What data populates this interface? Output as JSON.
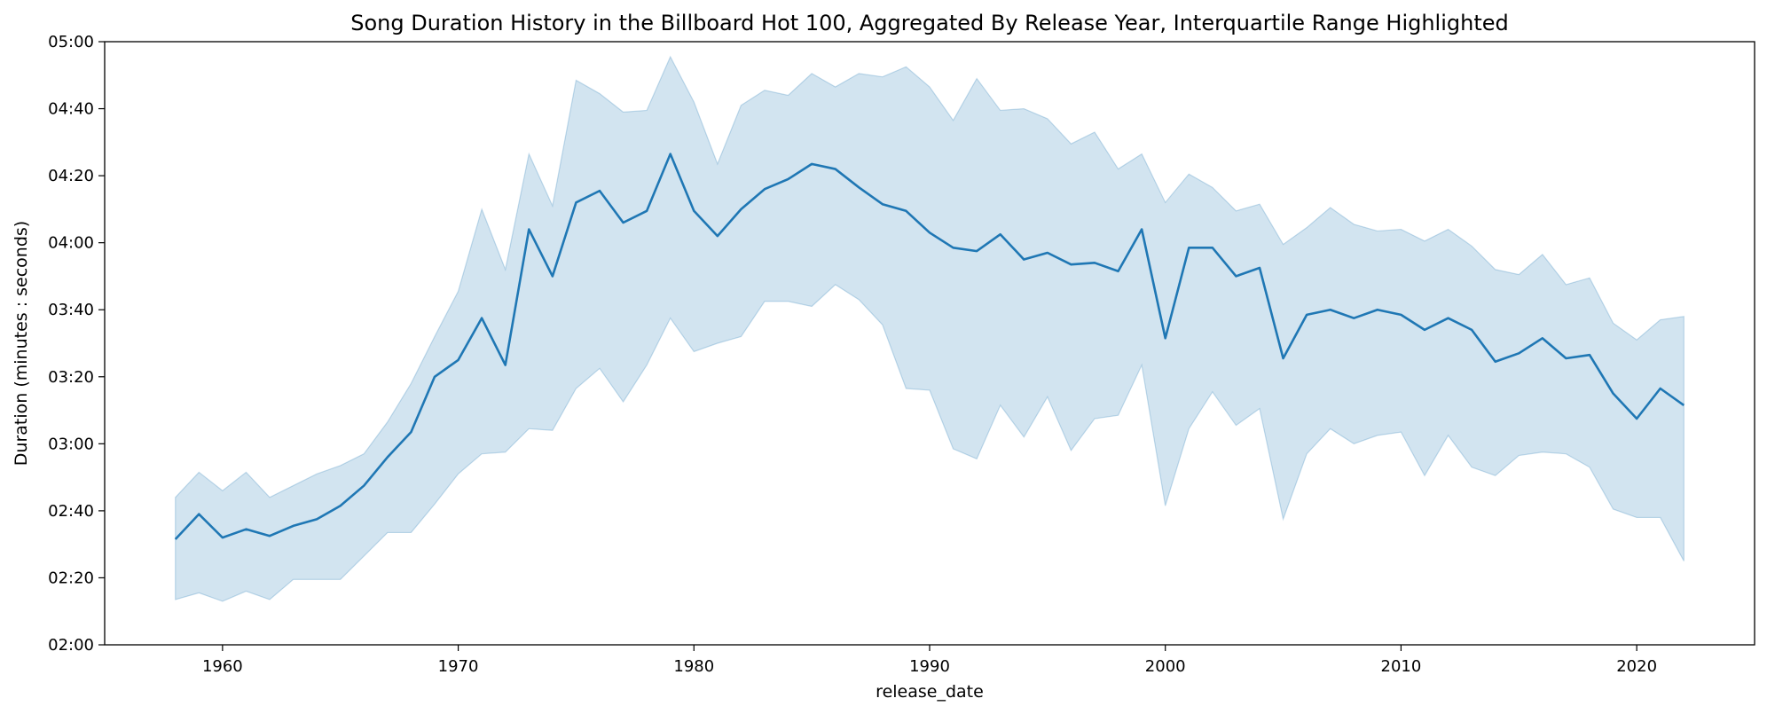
{
  "chart_data": {
    "type": "line",
    "title": "Song Duration History in the Billboard Hot 100, Aggregated By Release Year, Interquartile Range Highlighted",
    "xlabel": "release_date",
    "ylabel": "Duration (minutes : seconds)",
    "xlim": [
      1955,
      2025
    ],
    "ylim": [
      120,
      300
    ],
    "grid": false,
    "legend": "none",
    "x_ticks": [
      1960,
      1970,
      1980,
      1990,
      2000,
      2010,
      2020
    ],
    "y_ticks": [
      {
        "value": 120,
        "label": "02:00"
      },
      {
        "value": 140,
        "label": "02:20"
      },
      {
        "value": 160,
        "label": "02:40"
      },
      {
        "value": 180,
        "label": "03:00"
      },
      {
        "value": 200,
        "label": "03:20"
      },
      {
        "value": 220,
        "label": "03:40"
      },
      {
        "value": 240,
        "label": "04:00"
      },
      {
        "value": 260,
        "label": "04:20"
      },
      {
        "value": 280,
        "label": "04:40"
      },
      {
        "value": 300,
        "label": "05:00"
      }
    ],
    "colors": {
      "line": "#1f77b4",
      "band": "#1f77b4"
    },
    "x": [
      1958,
      1959,
      1960,
      1961,
      1962,
      1963,
      1964,
      1965,
      1966,
      1967,
      1968,
      1969,
      1970,
      1971,
      1972,
      1973,
      1974,
      1975,
      1976,
      1977,
      1978,
      1979,
      1980,
      1981,
      1982,
      1983,
      1984,
      1985,
      1986,
      1987,
      1988,
      1989,
      1990,
      1991,
      1992,
      1993,
      1994,
      1995,
      1996,
      1997,
      1998,
      1999,
      2000,
      2001,
      2002,
      2003,
      2004,
      2005,
      2006,
      2007,
      2008,
      2009,
      2010,
      2011,
      2012,
      2013,
      2014,
      2015,
      2016,
      2017,
      2018,
      2019,
      2020,
      2021,
      2022
    ],
    "series": [
      {
        "role": "median",
        "values": [
          151.5,
          159,
          152,
          154.5,
          152.5,
          155.5,
          157.5,
          161.5,
          167.5,
          176,
          183.5,
          200,
          205,
          217.5,
          203.5,
          244,
          230,
          252,
          255.5,
          246,
          249.5,
          266.5,
          249.5,
          242,
          250,
          256,
          259,
          263.5,
          262,
          256.5,
          251.5,
          249.5,
          243,
          238.5,
          237.5,
          242.5,
          235,
          237,
          233.5,
          234,
          231.5,
          244,
          211.5,
          238.5,
          238.5,
          230,
          232.5,
          205.5,
          218.5,
          220,
          217.5,
          220,
          218.5,
          214,
          217.5,
          214,
          204.5,
          207,
          211.5,
          205.5,
          206.5,
          195,
          187.5,
          196.5,
          191.5
        ]
      },
      {
        "role": "q1",
        "values": [
          133.5,
          135.5,
          133,
          136,
          133.5,
          139.5,
          139.5,
          139.5,
          146.5,
          153.5,
          153.5,
          162,
          171,
          177,
          177.5,
          184.5,
          184,
          196.5,
          202.5,
          192.5,
          203.5,
          217.5,
          207.5,
          210,
          212,
          222.5,
          222.5,
          221,
          227.5,
          223,
          215.5,
          196.5,
          196,
          178.5,
          175.5,
          191.5,
          182,
          194,
          178,
          187.5,
          188.5,
          203.5,
          161.5,
          184.5,
          195.5,
          185.5,
          190.5,
          157.5,
          177,
          184.5,
          180,
          182.5,
          183.5,
          170.5,
          182.5,
          173,
          170.5,
          176.5,
          177.5,
          177,
          173,
          160.5,
          158,
          158,
          145
        ]
      },
      {
        "role": "q3",
        "values": [
          164,
          171.5,
          166,
          171.5,
          164,
          167.5,
          171,
          173.5,
          177,
          186.5,
          198,
          212,
          225.5,
          250,
          232,
          266.5,
          251,
          288.5,
          284.5,
          279,
          279.5,
          295.5,
          282,
          263.5,
          281,
          285.5,
          284,
          290.5,
          286.5,
          290.5,
          289.5,
          292.5,
          286.5,
          276.5,
          289,
          279.5,
          280,
          277,
          269.5,
          273,
          262,
          266.5,
          252,
          260.5,
          256.5,
          249.5,
          251.5,
          239.5,
          244.5,
          250.5,
          245.5,
          243.5,
          244,
          240.5,
          244,
          239,
          232,
          230.5,
          236.5,
          227.5,
          229.5,
          216,
          211,
          217,
          218
        ]
      }
    ]
  }
}
